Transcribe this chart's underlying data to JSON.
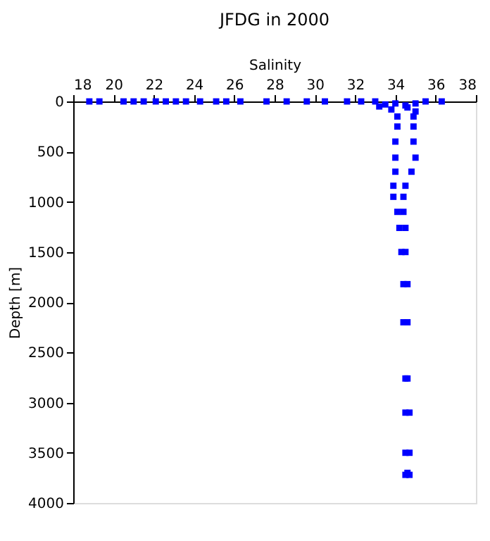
{
  "chart_data": {
    "type": "scatter",
    "title": "JFDG in 2000",
    "xlabel": "Salinity",
    "ylabel": "Depth [m]",
    "marker": "square",
    "grid": false,
    "series": [
      {
        "color": "#0000ff",
        "x": [
          18.8,
          19.3,
          20.5,
          21.0,
          21.5,
          22.1,
          22.6,
          23.1,
          23.6,
          24.3,
          25.1,
          25.6,
          26.3,
          27.6,
          28.6,
          29.6,
          30.5,
          31.6,
          32.3,
          33.0,
          33.5,
          34.0,
          34.5,
          35.0,
          35.5,
          36.3,
          33.2,
          33.8,
          34.6,
          35.0,
          34.1,
          34.9,
          34.1,
          34.9,
          34.0,
          34.9,
          34.0,
          35.0,
          34.0,
          34.8,
          33.9,
          34.5,
          33.9,
          34.4,
          34.1,
          34.4,
          34.2,
          34.5,
          34.3,
          34.5,
          34.4,
          34.6,
          34.4,
          34.6,
          34.5,
          34.6,
          34.5,
          34.7,
          34.5,
          34.7,
          34.5,
          34.7,
          34.6
        ],
        "values": [
          0,
          0,
          0,
          0,
          0,
          0,
          0,
          0,
          0,
          0,
          0,
          0,
          0,
          0,
          0,
          0,
          0,
          0,
          0,
          0,
          30,
          20,
          40,
          20,
          0,
          0,
          50,
          80,
          60,
          100,
          150,
          150,
          250,
          250,
          400,
          400,
          560,
          560,
          700,
          700,
          840,
          840,
          950,
          950,
          1100,
          1100,
          1260,
          1260,
          1500,
          1500,
          1820,
          1820,
          2200,
          2200,
          2760,
          2760,
          3100,
          3100,
          3500,
          3500,
          3720,
          3720,
          3700
        ]
      }
    ],
    "xlim": [
      18,
      38
    ],
    "xticks": [
      18,
      20,
      22,
      24,
      26,
      28,
      30,
      32,
      34,
      36,
      38
    ],
    "ylim": [
      4000,
      0
    ],
    "yticks": [
      0,
      500,
      1000,
      1500,
      2000,
      2500,
      3000,
      3500,
      4000
    ]
  }
}
